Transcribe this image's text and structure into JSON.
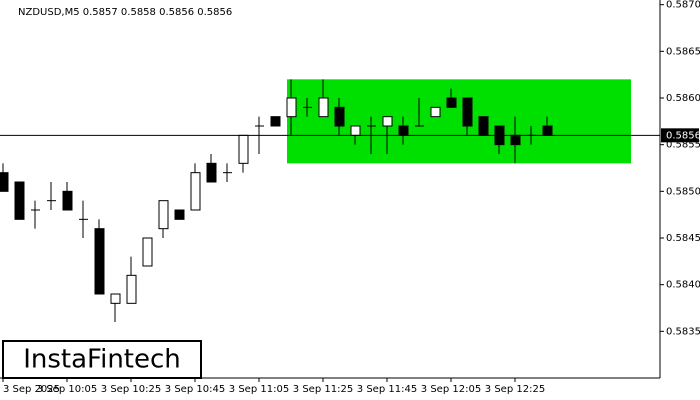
{
  "chart_data": {
    "type": "candlestick",
    "title": "NZDUSD,M5  0.5857 0.5858 0.5856 0.5856",
    "categories": [
      "3 Sep 2025",
      null,
      null,
      null,
      "3 Sep 10:05",
      null,
      null,
      null,
      "3 Sep 10:25",
      null,
      null,
      null,
      "3 Sep 10:45",
      null,
      null,
      null,
      "3 Sep 11:05",
      null,
      null,
      null,
      "3 Sep 11:25",
      null,
      null,
      null,
      "3 Sep 11:45",
      null,
      null,
      null,
      "3 Sep 12:05",
      null,
      null,
      null,
      "3 Sep 12:25",
      null,
      null
    ],
    "open": [
      0.5852,
      0.5851,
      0.5848,
      0.5849,
      0.585,
      0.5847,
      0.5846,
      0.5838,
      0.5838,
      0.5842,
      0.5846,
      0.5848,
      0.5848,
      0.5853,
      0.5852,
      0.5853,
      0.5857,
      0.5858,
      0.5858,
      0.5859,
      0.5858,
      0.5859,
      0.5856,
      0.5857,
      0.5857,
      0.5857,
      0.5857,
      0.5858,
      0.586,
      0.586,
      0.5858,
      0.5857,
      0.5856,
      0.5856,
      0.5857
    ],
    "high": [
      0.5853,
      0.5851,
      0.5849,
      0.5851,
      0.5851,
      0.5849,
      0.5847,
      0.5839,
      0.5843,
      0.5845,
      0.5849,
      0.5848,
      0.5853,
      0.5854,
      0.5853,
      0.5856,
      0.5858,
      0.5858,
      0.5862,
      0.586,
      0.5862,
      0.586,
      0.5857,
      0.5858,
      0.5858,
      0.5858,
      0.586,
      0.5859,
      0.5861,
      0.586,
      0.5858,
      0.5857,
      0.5858,
      0.5857,
      0.5858
    ],
    "low": [
      0.585,
      0.5847,
      0.5846,
      0.5848,
      0.5848,
      0.5845,
      0.5839,
      0.5836,
      0.5838,
      0.5842,
      0.5845,
      0.5847,
      0.5848,
      0.5851,
      0.5851,
      0.5852,
      0.5854,
      0.5857,
      0.5856,
      0.5858,
      0.5858,
      0.5856,
      0.5855,
      0.5854,
      0.5854,
      0.5855,
      0.5857,
      0.5858,
      0.5859,
      0.5856,
      0.5856,
      0.5854,
      0.5853,
      0.5855,
      0.5856
    ],
    "close": [
      0.585,
      0.5847,
      0.5848,
      0.5849,
      0.5848,
      0.5847,
      0.5839,
      0.5839,
      0.5841,
      0.5845,
      0.5849,
      0.5847,
      0.5852,
      0.5851,
      0.5852,
      0.5856,
      0.5857,
      0.5857,
      0.586,
      0.5859,
      0.586,
      0.5857,
      0.5857,
      0.5857,
      0.5858,
      0.5856,
      0.5857,
      0.5859,
      0.5859,
      0.5857,
      0.5856,
      0.5855,
      0.5855,
      0.5856,
      0.5856
    ],
    "up_color": "#ffffff",
    "down_color": "#000000",
    "zone_color": "#00e000",
    "zone": {
      "low": 0.5853,
      "high": 0.5862
    },
    "current_price": 0.5856,
    "ylim": [
      0.583,
      0.58705
    ],
    "yticks": [
      0.5835,
      {
        "value": 0.584,
        "label": "0.5840"
      },
      0.5845,
      {
        "value": 0.585,
        "label": "0.5850"
      },
      0.5855,
      {
        "value": 0.586,
        "label": "0.5860"
      },
      0.5865,
      {
        "value": 0.587,
        "label": "0.5870"
      }
    ]
  },
  "logo": "InstaFintech"
}
